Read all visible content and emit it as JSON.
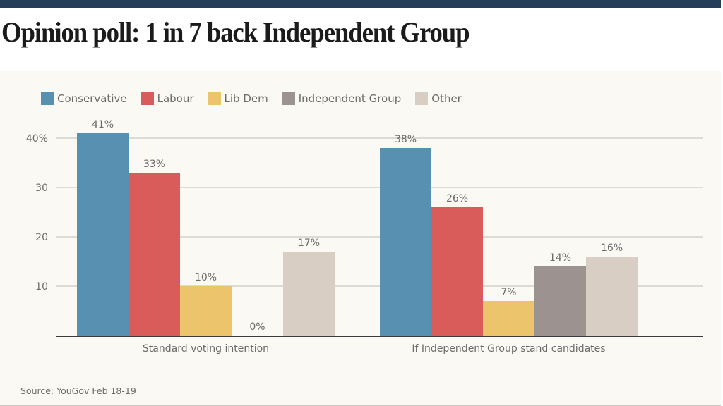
{
  "header": {
    "title": "Opinion poll: 1 in 7 back Independent Group"
  },
  "source": "Source: YouGov Feb 18-19",
  "chart_data": {
    "type": "bar",
    "title": "Opinion poll: 1 in 7 back Independent Group",
    "xlabel": "",
    "ylabel": "",
    "ylim": [
      0,
      40
    ],
    "yticks": [
      10,
      20,
      30,
      40
    ],
    "ytick_labels": [
      "10",
      "20",
      "30",
      "40%"
    ],
    "grid": true,
    "legend_position": "top-left",
    "categories": [
      "Standard voting intention",
      "If Independent Group stand candidates"
    ],
    "series": [
      {
        "name": "Conservative",
        "color": "#5790b0",
        "values": [
          41,
          38
        ],
        "labels": [
          "41%",
          "38%"
        ]
      },
      {
        "name": "Labour",
        "color": "#d95b5a",
        "values": [
          33,
          26
        ],
        "labels": [
          "33%",
          "26%"
        ]
      },
      {
        "name": "Lib Dem",
        "color": "#ebc46c",
        "values": [
          10,
          7
        ],
        "labels": [
          "10%",
          "7%"
        ]
      },
      {
        "name": "Independent Group",
        "color": "#9c9390",
        "values": [
          0,
          14
        ],
        "labels": [
          "0%",
          "14%"
        ]
      },
      {
        "name": "Other",
        "color": "#d9cec3",
        "values": [
          17,
          16
        ],
        "labels": [
          "17%",
          "16%"
        ]
      }
    ]
  }
}
